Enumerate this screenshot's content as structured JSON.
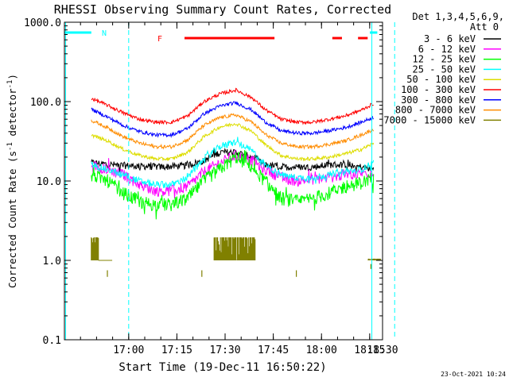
{
  "chart_data": {
    "type": "line",
    "title": "RHESSI Observing Summary Count Rates, Corrected",
    "xlabel": "Start Time (19-Dec-11 16:50:22)",
    "ylabel": "Corrected Count Rate (s",
    "ylabel_sup": "-1",
    "ylabel_mid": " detector",
    "ylabel_end": ")",
    "yscale": "log",
    "xlim_min": [
      -10.37,
      88.63
    ],
    "ylim": [
      0.1,
      1000
    ],
    "x_ticks": [
      {
        "m": 9.63,
        "label": "17:00"
      },
      {
        "m": 24.63,
        "label": "17:15"
      },
      {
        "m": 39.63,
        "label": "17:30"
      },
      {
        "m": 54.63,
        "label": "17:45"
      },
      {
        "m": 69.63,
        "label": "18:00"
      },
      {
        "m": 84.63,
        "label": "18:15"
      },
      {
        "m": 99.63,
        "label": "18:30"
      }
    ],
    "y_ticks": [
      {
        "v": 0.1,
        "label": "0.1"
      },
      {
        "v": 1,
        "label": "1.0"
      },
      {
        "v": 10,
        "label": "10.0"
      },
      {
        "v": 100,
        "label": "100.0"
      },
      {
        "v": 1000,
        "label": "1000.0"
      }
    ],
    "legend": {
      "header": [
        "Det 1,3,4,5,6,9,",
        "Att 0"
      ],
      "entries": [
        {
          "label": "3 - 6 keV",
          "color": "#000000"
        },
        {
          "label": "6 - 12 keV",
          "color": "#ff00ff"
        },
        {
          "label": "12 - 25 keV",
          "color": "#00ff00"
        },
        {
          "label": "25 - 50 keV",
          "color": "#00ffff"
        },
        {
          "label": "50 - 100 keV",
          "color": "#dddd00"
        },
        {
          "label": "100 - 300 keV",
          "color": "#ff0000"
        },
        {
          "label": "300 - 800 keV",
          "color": "#0000ff"
        },
        {
          "label": "800 - 7000 keV",
          "color": "#ff8c00"
        },
        {
          "label": "7000 - 15000 keV",
          "color": "#808000"
        }
      ]
    },
    "series": [
      {
        "name": "3 - 6 keV",
        "color": "#000000",
        "x_min": [
          -2,
          5,
          10,
          20,
          27,
          33,
          38,
          43,
          48,
          52,
          57,
          62,
          67,
          72,
          77,
          82,
          86
        ],
        "y": [
          17,
          16,
          15.5,
          15,
          15.5,
          18,
          23,
          23,
          20,
          16,
          15,
          15,
          15,
          16,
          16,
          15,
          14
        ]
      },
      {
        "name": "6 - 12 keV",
        "color": "#ff00ff",
        "x_min": [
          -2,
          3,
          8,
          13,
          18,
          23,
          28,
          33,
          38,
          43,
          48,
          52,
          57,
          62,
          67,
          72,
          77,
          82,
          86
        ],
        "y": [
          16,
          14,
          12,
          9,
          7.5,
          7.5,
          8.5,
          13,
          17,
          21,
          18,
          14,
          11,
          10,
          10.5,
          11,
          12,
          12.5,
          13
        ]
      },
      {
        "name": "12 - 25 keV",
        "color": "#00ff00",
        "x_min": [
          -2,
          3,
          8,
          13,
          18,
          23,
          28,
          33,
          38,
          43,
          48,
          52,
          57,
          62,
          67,
          72,
          77,
          82,
          86
        ],
        "y": [
          12,
          10,
          7,
          5.5,
          5,
          5,
          6,
          10,
          14,
          20,
          15,
          10,
          6,
          5.5,
          6,
          7,
          8.5,
          9.5,
          11
        ]
      },
      {
        "name": "25 - 50 keV",
        "color": "#00ffff",
        "x_min": [
          -2,
          3,
          8,
          13,
          18,
          23,
          28,
          33,
          38,
          43,
          48,
          52,
          57,
          62,
          67,
          72,
          77,
          82,
          86
        ],
        "y": [
          16,
          14,
          12,
          10,
          9,
          9,
          11,
          19,
          27,
          31,
          24,
          16,
          12,
          11,
          11,
          12,
          13,
          14,
          17
        ]
      },
      {
        "name": "50 - 100 keV",
        "color": "#dddd00",
        "x_min": [
          -2,
          3,
          8,
          13,
          18,
          23,
          28,
          33,
          38,
          43,
          48,
          52,
          57,
          62,
          67,
          72,
          77,
          82,
          86
        ],
        "y": [
          38,
          32,
          25,
          21,
          19,
          19,
          23,
          36,
          48,
          53,
          42,
          29,
          21,
          19,
          19,
          20,
          22,
          25,
          30
        ]
      },
      {
        "name": "100 - 300 keV",
        "color": "#ff0000",
        "x_min": [
          -2,
          3,
          8,
          13,
          18,
          23,
          28,
          33,
          38,
          43,
          48,
          52,
          57,
          62,
          67,
          72,
          77,
          82,
          86
        ],
        "y": [
          110,
          90,
          72,
          60,
          55,
          55,
          66,
          100,
          125,
          140,
          112,
          80,
          60,
          55,
          55,
          60,
          66,
          78,
          95
        ]
      },
      {
        "name": "300 - 800 keV",
        "color": "#0000ff",
        "x_min": [
          -2,
          3,
          8,
          13,
          18,
          23,
          28,
          33,
          38,
          43,
          48,
          52,
          57,
          62,
          67,
          72,
          77,
          82,
          86
        ],
        "y": [
          80,
          64,
          50,
          42,
          38,
          38,
          46,
          70,
          88,
          97,
          78,
          56,
          43,
          40,
          40,
          43,
          47,
          55,
          64
        ]
      },
      {
        "name": "800 - 7000 keV",
        "color": "#ff8c00",
        "x_min": [
          -2,
          3,
          8,
          13,
          18,
          23,
          28,
          33,
          38,
          43,
          48,
          52,
          57,
          62,
          67,
          72,
          77,
          82,
          86
        ],
        "y": [
          58,
          47,
          36,
          30,
          27,
          27,
          33,
          50,
          63,
          68,
          55,
          39,
          30,
          27,
          27,
          29,
          32,
          38,
          45
        ]
      },
      {
        "name": "7000 - 15000 keV",
        "color": "#808000",
        "x_min": [
          -2,
          0,
          2,
          4,
          8,
          36,
          38,
          40,
          42,
          44,
          46,
          48,
          50,
          84,
          86,
          87
        ],
        "y": [
          0.5,
          1.9,
          1.6,
          1.0,
          1.0,
          1.0,
          1.9,
          1.95,
          1.8,
          1.9,
          1.9,
          1.0,
          0.5,
          1.0,
          1.0,
          0.5
        ]
      }
    ],
    "flags": [
      {
        "letter": "N",
        "color": "#00ffff",
        "segments_min": [
          [
            -10.37,
            -2.0
          ],
          [
            87.0,
            92.5
          ]
        ]
      },
      {
        "letter": "F",
        "color": "#ff0000",
        "segments_min": [
          [
            27.0,
            55.0
          ],
          [
            73.0,
            76.0
          ],
          [
            81.0,
            84.0
          ]
        ]
      }
    ],
    "vlines": [
      {
        "m": -10.0,
        "style": "solid",
        "color": "#00ffff"
      },
      {
        "m": 9.63,
        "style": "dashed",
        "color": "#00ffff"
      },
      {
        "m": 85.3,
        "style": "solid",
        "color": "#00ffff"
      },
      {
        "m": 92.4,
        "style": "dashed",
        "color": "#00ffff"
      }
    ],
    "footer_date": "23-Oct-2021 10:24"
  }
}
